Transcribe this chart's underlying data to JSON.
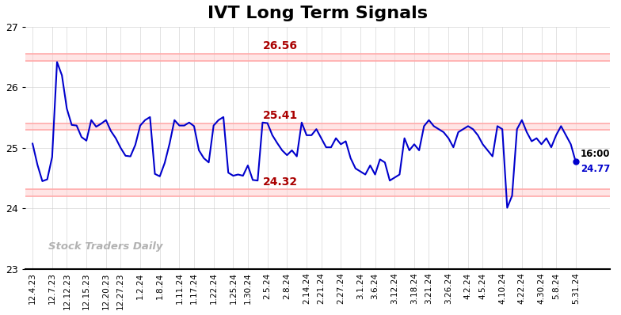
{
  "title": "IVT Long Term Signals",
  "title_fontsize": 16,
  "watermark": "Stock Traders Daily",
  "x_labels": [
    "12.4.23",
    "12.7.23",
    "12.12.23",
    "12.15.23",
    "12.20.23",
    "12.27.23",
    "1.2.24",
    "1.8.24",
    "1.11.24",
    "1.17.24",
    "1.22.24",
    "1.25.24",
    "1.30.24",
    "2.5.24",
    "2.8.24",
    "2.14.24",
    "2.21.24",
    "2.27.24",
    "3.1.24",
    "3.6.24",
    "3.12.24",
    "3.18.24",
    "3.21.24",
    "3.26.24",
    "4.2.24",
    "4.5.24",
    "4.10.24",
    "4.22.24",
    "4.30.24",
    "5.8.24",
    "5.31.24"
  ],
  "y_values": [
    25.07,
    24.72,
    24.45,
    24.48,
    24.85,
    26.42,
    26.2,
    25.65,
    25.38,
    25.37,
    25.18,
    25.12,
    25.46,
    25.35,
    25.4,
    25.46,
    25.28,
    25.16,
    25.0,
    24.87,
    24.86,
    25.05,
    25.37,
    25.46,
    25.51,
    24.57,
    24.53,
    24.75,
    25.07,
    25.46,
    25.37,
    25.37,
    25.42,
    25.36,
    24.96,
    24.83,
    24.76,
    25.37,
    25.46,
    25.51,
    24.59,
    24.54,
    24.56,
    24.54,
    24.71,
    24.47,
    24.46,
    25.42,
    25.41,
    25.21,
    25.08,
    24.96,
    24.88,
    24.96,
    24.86,
    25.42,
    25.21,
    25.21,
    25.31,
    25.16,
    25.01,
    25.01,
    25.16,
    25.06,
    25.11,
    24.83,
    24.66,
    24.61,
    24.56,
    24.71,
    24.56,
    24.81,
    24.76,
    24.46,
    24.51,
    24.56,
    25.16,
    24.96,
    25.06,
    24.96,
    25.36,
    25.46,
    25.36,
    25.31,
    25.26,
    25.16,
    25.01,
    25.26,
    25.31,
    25.36,
    25.31,
    25.21,
    25.06,
    24.96,
    24.86,
    25.36,
    25.31,
    24.01,
    24.21,
    25.31,
    25.46,
    25.26,
    25.11,
    25.16,
    25.06,
    25.16,
    25.01,
    25.21,
    25.36,
    25.21,
    25.06,
    24.77
  ],
  "line_color": "#0000cc",
  "line_width": 1.5,
  "upper_line": 26.56,
  "upper_line2": 26.44,
  "middle_line": 25.41,
  "middle_line2": 25.3,
  "lower_line": 24.32,
  "lower_line2": 24.2,
  "band_fill_color": "#ffcccc",
  "band_fill_alpha": 0.5,
  "band_linecolor": "#ffaaaa",
  "band_linewidth": 1.2,
  "annotation_upper": "26.56",
  "annotation_middle": "25.41",
  "annotation_lower": "24.32",
  "annotation_color": "#aa0000",
  "annotation_fontsize": 10,
  "end_label_time": "16:00",
  "end_label_value": "24.77",
  "end_dot_color": "#0000cc",
  "ylim_min": 23.0,
  "ylim_max": 27.0,
  "yticks": [
    23,
    24,
    25,
    26,
    27
  ],
  "background_color": "#ffffff",
  "grid_color": "#cccccc",
  "grid_alpha": 0.8
}
